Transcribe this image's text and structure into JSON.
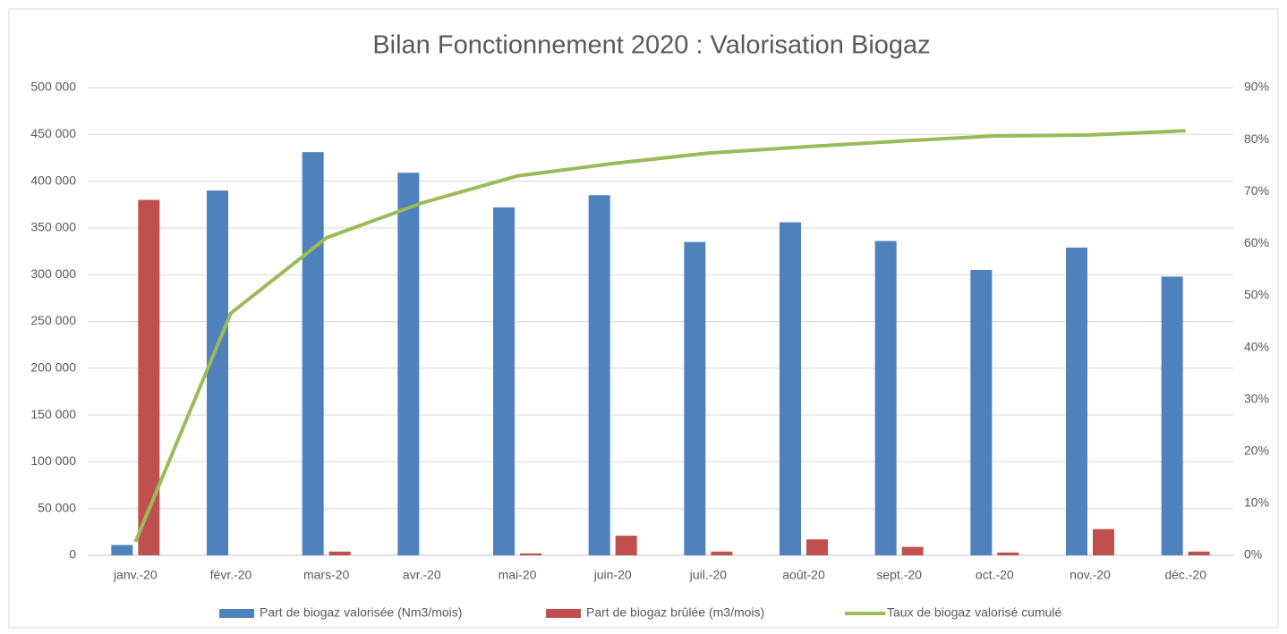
{
  "chart_data": {
    "type": "bar_line",
    "title": "Bilan Fonctionnement 2020 : Valorisation Biogaz",
    "categories": [
      "janv.-20",
      "févr.-20",
      "mars-20",
      "avr.-20",
      "mai-20",
      "juin-20",
      "juil.-20",
      "août-20",
      "sept.-20",
      "oct.-20",
      "nov.-20",
      "déc.-20"
    ],
    "series": [
      {
        "name": "Part de biogaz valorisée (Nm3/mois)",
        "color": "#4f81bd",
        "type": "bar",
        "axis": "y",
        "values": [
          11000,
          390000,
          431000,
          409000,
          372000,
          385000,
          335000,
          356000,
          336000,
          305000,
          329000,
          298000
        ]
      },
      {
        "name": "Part de biogaz brûlée (m3/mois)",
        "color": "#c0504d",
        "type": "bar",
        "axis": "y",
        "values": [
          380000,
          0,
          4000,
          0,
          2000,
          21000,
          4000,
          17000,
          9000,
          3000,
          28000,
          4000
        ]
      },
      {
        "name": "Taux de biogaz valorisé cumulé",
        "color": "#9bbb59",
        "type": "line",
        "axis": "y2",
        "values": [
          2.6,
          46.6,
          61.1,
          67.8,
          73,
          75.4,
          77.4,
          78.6,
          79.7,
          80.7,
          80.9,
          81.7
        ]
      }
    ],
    "ylim": [
      0,
      500000
    ],
    "yticks": [
      0,
      {
        "value": 50000,
        "label": "50 000"
      },
      {
        "value": 100000,
        "label": "100 000"
      },
      {
        "value": 150000,
        "label": "150 000"
      },
      {
        "value": 200000,
        "label": "200 000"
      },
      {
        "value": 250000,
        "label": "250 000"
      },
      {
        "value": 300000,
        "label": "300 000"
      },
      {
        "value": 350000,
        "label": "350 000"
      },
      {
        "value": 400000,
        "label": "400 000"
      },
      {
        "value": 450000,
        "label": "450 000"
      },
      {
        "value": 500000,
        "label": "500 000"
      }
    ],
    "y2lim": [
      0,
      90
    ],
    "y2ticks": [
      {
        "value": 0,
        "label": "0%"
      },
      {
        "value": 10,
        "label": "10%"
      },
      {
        "value": 20,
        "label": "20%"
      },
      {
        "value": 30,
        "label": "30%"
      },
      {
        "value": 40,
        "label": "40%"
      },
      {
        "value": 50,
        "label": "50%"
      },
      {
        "value": 60,
        "label": "60%"
      },
      {
        "value": 70,
        "label": "70%"
      },
      {
        "value": 80,
        "label": "80%"
      },
      {
        "value": 90,
        "label": "90%"
      }
    ],
    "grid": true,
    "legend": "bottom"
  }
}
